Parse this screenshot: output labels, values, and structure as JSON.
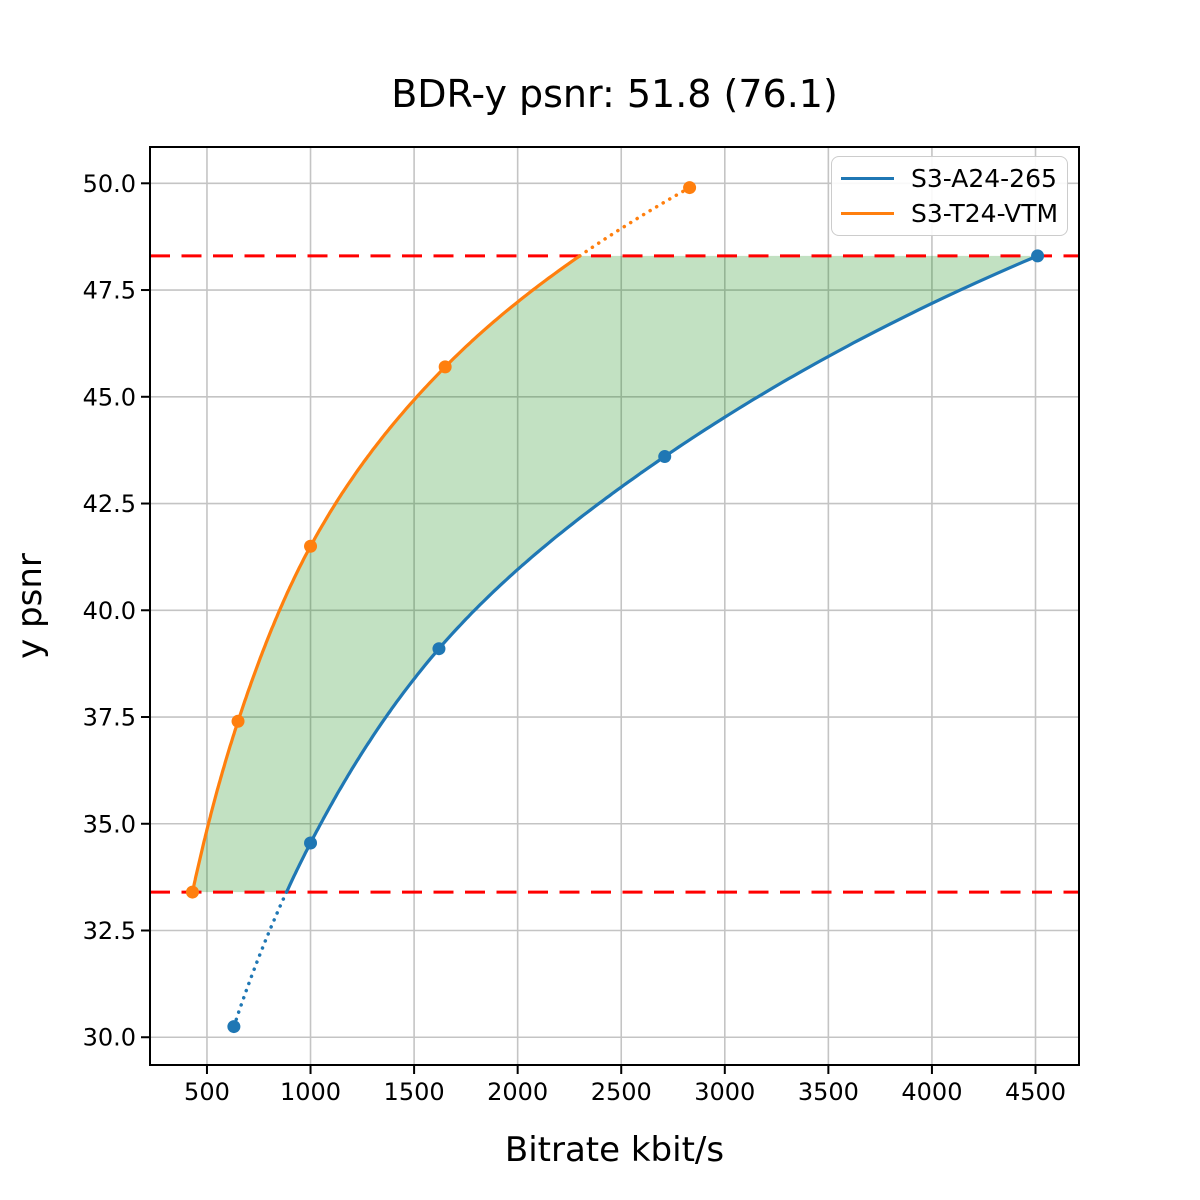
{
  "chart_data": {
    "type": "line",
    "title": "BDR-y psnr: 51.8 (76.1)",
    "xlabel": "Bitrate kbit/s",
    "ylabel": "y psnr",
    "xlim": [
      225,
      4710
    ],
    "ylim": [
      29.35,
      50.85
    ],
    "xticks": [
      500,
      1000,
      1500,
      2000,
      2500,
      3000,
      3500,
      4000,
      4500
    ],
    "xtick_labels": [
      "500",
      "1000",
      "1500",
      "2000",
      "2500",
      "3000",
      "3500",
      "4000",
      "4500"
    ],
    "yticks": [
      30.0,
      32.5,
      35.0,
      37.5,
      40.0,
      42.5,
      45.0,
      47.5,
      50.0
    ],
    "ytick_labels": [
      "30.0",
      "32.5",
      "35.0",
      "37.5",
      "40.0",
      "42.5",
      "45.0",
      "47.5",
      "50.0"
    ],
    "grid": true,
    "grid_color": "#c4c4c4",
    "legend_position": "upper right",
    "series": [
      {
        "name": "S3-A24-265",
        "color": "#1f77b4",
        "points": [
          [
            630,
            30.25
          ],
          [
            1000,
            34.55
          ],
          [
            1620,
            39.1
          ],
          [
            2710,
            43.6
          ],
          [
            4510,
            48.3
          ]
        ]
      },
      {
        "name": "S3-T24-VTM",
        "color": "#ff7f0e",
        "points": [
          [
            430,
            33.4
          ],
          [
            650,
            37.4
          ],
          [
            1000,
            41.5
          ],
          [
            1650,
            45.7
          ],
          [
            2830,
            49.9
          ]
        ]
      }
    ],
    "overlap_solid_range": [
      33.4,
      48.3
    ],
    "hlines": [
      {
        "y": 48.3,
        "color": "#ff0000",
        "style": "dashed"
      },
      {
        "y": 33.4,
        "color": "#ff0000",
        "style": "dashed"
      }
    ],
    "fill_region": {
      "color": "#008000",
      "opacity": 0.24,
      "between": [
        "S3-T24-VTM",
        "S3-A24-265"
      ],
      "y_range": [
        33.4,
        48.3
      ]
    }
  }
}
